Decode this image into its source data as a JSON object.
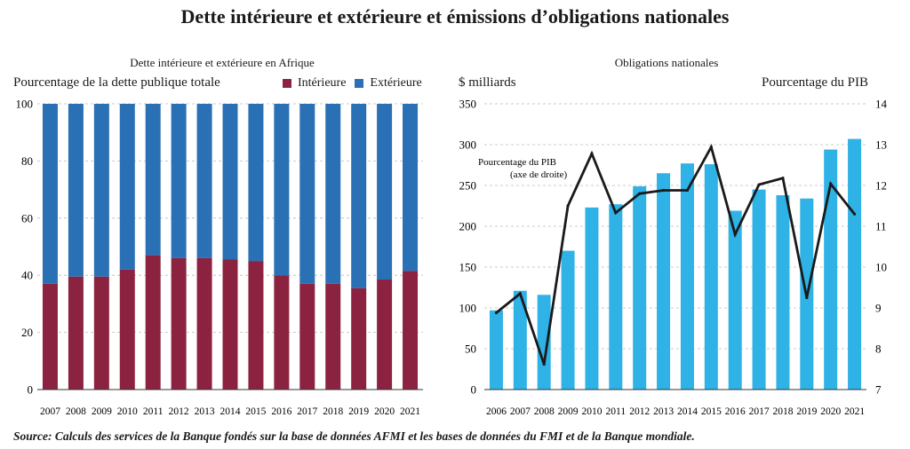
{
  "title": "Dette intérieure et extérieure et émissions d’obligations nationales",
  "source": "Source: Calculs des services de la Banque fondés sur la base de données AFMI et les bases de données du FMI et de la Banque mondiale.",
  "colors": {
    "interieure": "#8b2340",
    "exterieure": "#2a70b5",
    "bonds": "#2fb2e6",
    "line": "#1a1a1a"
  },
  "chart_data": [
    {
      "type": "bar",
      "stacked": true,
      "title": "Dette intérieure et extérieure en Afrique",
      "ylabel": "Pourcentage de la dette publique totale",
      "ylim": [
        0,
        100
      ],
      "yticks": [
        0,
        20,
        40,
        60,
        80,
        100
      ],
      "grid": true,
      "legend": "top-right",
      "categories": [
        "2007",
        "2008",
        "2009",
        "2010",
        "2011",
        "2012",
        "2013",
        "2014",
        "2015",
        "2016",
        "2017",
        "2018",
        "2019",
        "2020",
        "2021"
      ],
      "series": [
        {
          "name": "Intérieure",
          "values": [
            37,
            39.5,
            39.5,
            42,
            47,
            46,
            46,
            45.5,
            45,
            40,
            37,
            37,
            35.5,
            38.5,
            41.5
          ]
        },
        {
          "name": "Extérieure",
          "values": [
            63,
            60.5,
            60.5,
            58,
            53,
            54,
            54,
            54.5,
            55,
            60,
            63,
            63,
            64.5,
            61.5,
            58.5
          ]
        }
      ]
    },
    {
      "type": "bar+line",
      "title": "Obligations nationales",
      "ylabel_left": "$ milliards",
      "ylabel_right": "Pourcentage du PIB",
      "ylim_left": [
        0,
        350
      ],
      "ylim_right": [
        7,
        14
      ],
      "yticks_left": [
        0,
        50,
        100,
        150,
        200,
        250,
        300,
        350
      ],
      "yticks_right": [
        7,
        8,
        9,
        10,
        11,
        12,
        13,
        14
      ],
      "grid": true,
      "categories": [
        "2006",
        "2007",
        "2008",
        "2009",
        "2010",
        "2011",
        "2012",
        "2013",
        "2014",
        "2015",
        "2016",
        "2017",
        "2018",
        "2019",
        "2020",
        "2021"
      ],
      "bars": {
        "axis": "left",
        "values": [
          97,
          121,
          116,
          170,
          223,
          227,
          249,
          265,
          277,
          276,
          219,
          245,
          238,
          234,
          294,
          307
        ]
      },
      "line": {
        "axis": "right",
        "label_line1": "Pourcentage du PIB",
        "label_line2": "(axe de droite)",
        "values": [
          8.88,
          9.35,
          7.62,
          11.5,
          12.78,
          11.33,
          11.8,
          11.88,
          11.88,
          12.94,
          10.8,
          12.02,
          12.18,
          9.25,
          12.04,
          11.3
        ]
      }
    }
  ]
}
